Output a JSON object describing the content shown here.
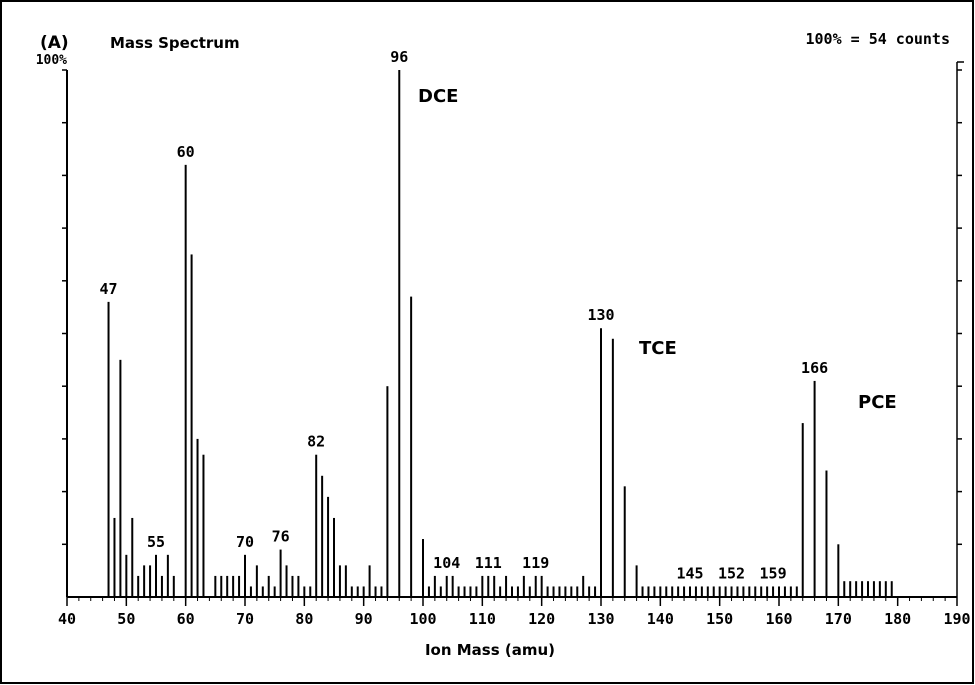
{
  "chart_data": {
    "type": "bar",
    "title": "Mass Spectrum",
    "panel_label": "(A)",
    "scale_note": "100% = 54 counts",
    "xlabel": "Ion Mass (amu)",
    "color": "#000000",
    "x": [
      47,
      48,
      49,
      50,
      51,
      52,
      53,
      54,
      55,
      56,
      57,
      58,
      60,
      61,
      62,
      63,
      65,
      66,
      67,
      68,
      69,
      70,
      71,
      72,
      73,
      74,
      75,
      76,
      77,
      78,
      79,
      80,
      81,
      82,
      83,
      84,
      85,
      86,
      87,
      88,
      89,
      90,
      91,
      92,
      93,
      94,
      96,
      98,
      100,
      101,
      102,
      103,
      104,
      105,
      106,
      107,
      108,
      109,
      110,
      111,
      112,
      113,
      114,
      115,
      116,
      117,
      118,
      119,
      120,
      121,
      122,
      123,
      124,
      125,
      126,
      127,
      128,
      129,
      130,
      132,
      134,
      136,
      137,
      138,
      139,
      140,
      141,
      142,
      143,
      144,
      145,
      146,
      147,
      148,
      149,
      150,
      151,
      152,
      153,
      154,
      155,
      156,
      157,
      158,
      159,
      160,
      161,
      162,
      163,
      164,
      166,
      168,
      170,
      171,
      172,
      173,
      174,
      175,
      176,
      177,
      178,
      179
    ],
    "values": [
      56,
      15,
      45,
      8,
      15,
      4,
      6,
      6,
      8,
      4,
      8,
      4,
      82,
      65,
      30,
      27,
      4,
      4,
      4,
      4,
      4,
      8,
      2,
      6,
      2,
      4,
      2,
      9,
      6,
      4,
      4,
      2,
      2,
      27,
      23,
      19,
      15,
      6,
      6,
      2,
      2,
      2,
      6,
      2,
      2,
      40,
      100,
      57,
      11,
      2,
      4,
      2,
      4,
      4,
      2,
      2,
      2,
      2,
      4,
      4,
      4,
      2,
      4,
      2,
      2,
      4,
      2,
      4,
      4,
      2,
      2,
      2,
      2,
      2,
      2,
      4,
      2,
      2,
      51,
      49,
      21,
      6,
      2,
      2,
      2,
      2,
      2,
      2,
      2,
      2,
      2,
      2,
      2,
      2,
      2,
      2,
      2,
      2,
      2,
      2,
      2,
      2,
      2,
      2,
      2,
      2,
      2,
      2,
      2,
      33,
      41,
      24,
      10,
      3,
      3,
      3,
      3,
      3,
      3,
      3,
      3,
      3
    ],
    "peak_labels": [
      47,
      55,
      60,
      70,
      76,
      82,
      96,
      104,
      111,
      119,
      130,
      145,
      152,
      159,
      166
    ],
    "compounds": [
      "DCE",
      "TCE",
      "PCE"
    ],
    "xlim": [
      40,
      190
    ],
    "xticks": [
      40,
      50,
      60,
      70,
      80,
      90,
      100,
      110,
      120,
      130,
      140,
      150,
      160,
      170,
      180,
      190
    ],
    "ylim": [
      0,
      100
    ],
    "yticks": [
      10,
      20,
      30,
      40,
      50,
      60,
      70,
      80,
      90,
      {
        "value": 100,
        "label": "100%"
      }
    ]
  }
}
